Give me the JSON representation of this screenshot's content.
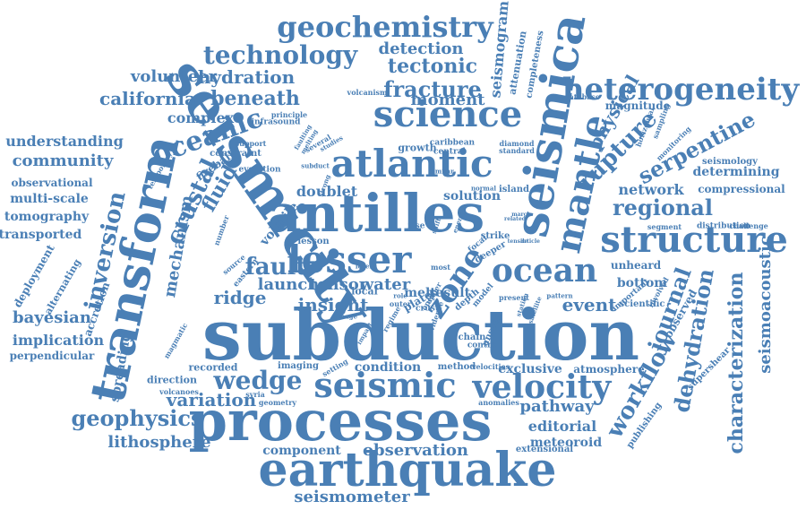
{
  "colors": {
    "word": "#4a7fb5",
    "background": "#ffffff"
  },
  "words": [
    {
      "text": "subduction"
    },
    {
      "text": "processes"
    },
    {
      "text": "earthquake"
    },
    {
      "text": "seismicity"
    },
    {
      "text": "antilles"
    },
    {
      "text": "seismica"
    },
    {
      "text": "structure"
    },
    {
      "text": "atlantic"
    },
    {
      "text": "transform"
    },
    {
      "text": "lesser"
    },
    {
      "text": "science"
    },
    {
      "text": "seismic"
    },
    {
      "text": "velocity"
    },
    {
      "text": "ocean"
    },
    {
      "text": "mantle"
    },
    {
      "text": "zone"
    },
    {
      "text": "heterogeneity"
    },
    {
      "text": "geochemistry"
    },
    {
      "text": "oceanic"
    },
    {
      "text": "technology"
    },
    {
      "text": "fracture"
    },
    {
      "text": "tectonic"
    },
    {
      "text": "fault"
    },
    {
      "text": "regional"
    },
    {
      "text": "rupture"
    },
    {
      "text": "serpentine"
    },
    {
      "text": "wedge"
    },
    {
      "text": "inversion"
    },
    {
      "text": "geophysics"
    },
    {
      "text": "workflow"
    },
    {
      "text": "journal"
    },
    {
      "text": "dehydration"
    },
    {
      "text": "characterization"
    },
    {
      "text": "seismoacoustic"
    },
    {
      "text": "crustal"
    },
    {
      "text": "fluid"
    },
    {
      "text": "california"
    },
    {
      "text": "beneath"
    },
    {
      "text": "hydration"
    },
    {
      "text": "volunteer"
    },
    {
      "text": "detection"
    },
    {
      "text": "seismogram"
    },
    {
      "text": "moment"
    },
    {
      "text": "physical"
    },
    {
      "text": "event"
    },
    {
      "text": "insight"
    },
    {
      "text": "ridge"
    },
    {
      "text": "launch"
    },
    {
      "text": "tensor"
    },
    {
      "text": "water"
    },
    {
      "text": "variation"
    },
    {
      "text": "pathway"
    },
    {
      "text": "editorial"
    },
    {
      "text": "lithosphere"
    },
    {
      "text": "observation"
    },
    {
      "text": "seismometer"
    },
    {
      "text": "community"
    },
    {
      "text": "understanding"
    },
    {
      "text": "complex"
    },
    {
      "text": "bayesian"
    },
    {
      "text": "implication"
    },
    {
      "text": "tomography"
    },
    {
      "text": "transported"
    },
    {
      "text": "multi-scale"
    },
    {
      "text": "observational"
    },
    {
      "text": "perpendicular"
    },
    {
      "text": "mechanism"
    },
    {
      "text": "doublet"
    },
    {
      "text": "network"
    },
    {
      "text": "determining"
    },
    {
      "text": "compressional"
    },
    {
      "text": "bottom"
    },
    {
      "text": "magnitude"
    },
    {
      "text": "meteoroid"
    },
    {
      "text": "extensional"
    },
    {
      "text": "component"
    },
    {
      "text": "exclusive"
    },
    {
      "text": "atmosphere"
    },
    {
      "text": "condition"
    },
    {
      "text": "solution"
    },
    {
      "text": "result"
    },
    {
      "text": "melt"
    },
    {
      "text": "spreading"
    },
    {
      "text": "accretion"
    },
    {
      "text": "deployment"
    },
    {
      "text": "alternating"
    },
    {
      "text": "attenuation"
    },
    {
      "text": "completeness"
    },
    {
      "text": "infrasound"
    },
    {
      "text": "volcanism"
    },
    {
      "text": "publishing"
    },
    {
      "text": "supershear"
    },
    {
      "text": "scientific"
    },
    {
      "text": "observed"
    },
    {
      "text": "unheard"
    },
    {
      "text": "volatile"
    },
    {
      "text": "fireball"
    },
    {
      "text": "constraint"
    },
    {
      "text": "evolution"
    },
    {
      "text": "principle"
    },
    {
      "text": "database"
    },
    {
      "text": "growth"
    },
    {
      "text": "central"
    },
    {
      "text": "caribbean"
    },
    {
      "text": "diamond"
    },
    {
      "text": "standard"
    },
    {
      "text": "island"
    },
    {
      "text": "recorded"
    },
    {
      "text": "direction"
    },
    {
      "text": "volcanoes"
    },
    {
      "text": "imaging"
    },
    {
      "text": "geometry"
    },
    {
      "text": "velocities"
    },
    {
      "text": "anomalies"
    },
    {
      "text": "method"
    },
    {
      "text": "chain"
    },
    {
      "text": "control"
    },
    {
      "text": "unseen"
    },
    {
      "text": "depth"
    },
    {
      "text": "plate"
    },
    {
      "text": "local"
    },
    {
      "text": "lesson"
    },
    {
      "text": "eastern"
    },
    {
      "text": "number"
    },
    {
      "text": "source"
    },
    {
      "text": "magmatic"
    },
    {
      "text": "seismology"
    },
    {
      "text": "distribution"
    },
    {
      "text": "challenge"
    },
    {
      "text": "segment"
    },
    {
      "text": "important"
    },
    {
      "text": "involved"
    },
    {
      "text": "monitoring"
    },
    {
      "text": "horizontal"
    },
    {
      "text": "sampling"
    },
    {
      "text": "support"
    },
    {
      "text": "temporary"
    },
    {
      "text": "subduct"
    },
    {
      "text": "several"
    },
    {
      "text": "studies"
    },
    {
      "text": "faulting"
    },
    {
      "text": "melting"
    },
    {
      "text": "strong"
    },
    {
      "text": "deeper"
    },
    {
      "text": "focal"
    },
    {
      "text": "strike"
    },
    {
      "text": "most"
    },
    {
      "text": "level"
    },
    {
      "text": "rise"
    },
    {
      "text": "shift"
    },
    {
      "text": "energy"
    },
    {
      "text": "normal"
    },
    {
      "text": "similar"
    },
    {
      "text": "crust"
    },
    {
      "text": "open"
    },
    {
      "text": "upper"
    },
    {
      "text": "outer"
    },
    {
      "text": "role"
    },
    {
      "text": "model"
    },
    {
      "text": "present"
    },
    {
      "text": "station"
    },
    {
      "text": "satellite"
    },
    {
      "text": "pattern"
    },
    {
      "text": "evidence"
    },
    {
      "text": "regime"
    },
    {
      "text": "impact"
    },
    {
      "text": "image"
    },
    {
      "text": "setting"
    },
    {
      "text": "syria"
    },
    {
      "text": "article"
    },
    {
      "text": "related"
    },
    {
      "text": "march"
    },
    {
      "text": "tensile"
    }
  ]
}
